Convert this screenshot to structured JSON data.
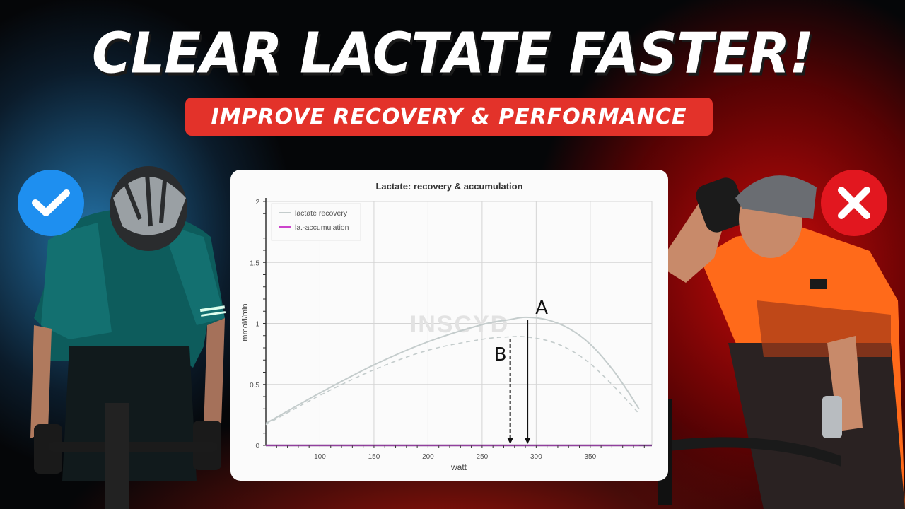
{
  "headline": "CLEAR LACTATE FASTER!",
  "subtitle": "IMPROVE RECOVERY & PERFORMANCE",
  "badges": {
    "left": {
      "icon": "checkmark-icon",
      "color": "#1e8ff0"
    },
    "right": {
      "icon": "cross-icon",
      "color": "#e2171f"
    }
  },
  "colors": {
    "subtitle_bg": "#e3322a",
    "recovery_line": "#c4cccc",
    "accumulation_line": "#cc44cc",
    "axis_line": "#7a3d8a"
  },
  "watermark": "INSCYD",
  "annotations": {
    "A": {
      "label": "A",
      "x": 292,
      "style": "solid-arrow"
    },
    "B": {
      "label": "B",
      "x": 276,
      "style": "dashed-arrow"
    }
  },
  "chart_data": {
    "type": "line",
    "title": "Lactate: recovery & accumulation",
    "xlabel": "watt",
    "ylabel": "mmol/l/min",
    "xlim": [
      50,
      407
    ],
    "ylim": [
      0,
      2
    ],
    "xticks": [
      100,
      150,
      200,
      250,
      300,
      350
    ],
    "yticks": [
      0,
      0.5,
      1,
      1.5,
      2
    ],
    "ytick_labels": [
      "0",
      "0.5",
      "1",
      "1.5",
      "2"
    ],
    "grid": true,
    "legend": {
      "position": "upper left",
      "entries": [
        "lactate recovery",
        "la.-accumulation"
      ]
    },
    "x": [
      50,
      100,
      150,
      200,
      250,
      275,
      290,
      310,
      330,
      350,
      370,
      385,
      395
    ],
    "series": [
      {
        "name": "lactate recovery",
        "style": "solid",
        "color": "#c4cccc",
        "values": [
          0.18,
          0.43,
          0.66,
          0.85,
          0.99,
          1.03,
          1.05,
          1.03,
          0.96,
          0.83,
          0.63,
          0.44,
          0.3
        ]
      },
      {
        "name": "lactate recovery (reduced)",
        "style": "dashed",
        "color": "#c4cccc",
        "values": [
          0.17,
          0.41,
          0.62,
          0.78,
          0.87,
          0.89,
          0.89,
          0.86,
          0.79,
          0.67,
          0.5,
          0.36,
          0.26
        ]
      },
      {
        "name": "la.-accumulation",
        "style": "solid",
        "color": "#cc44cc",
        "values": [
          0,
          0,
          0,
          0,
          0,
          0,
          0,
          0,
          0,
          0,
          0,
          0,
          0
        ]
      }
    ]
  }
}
